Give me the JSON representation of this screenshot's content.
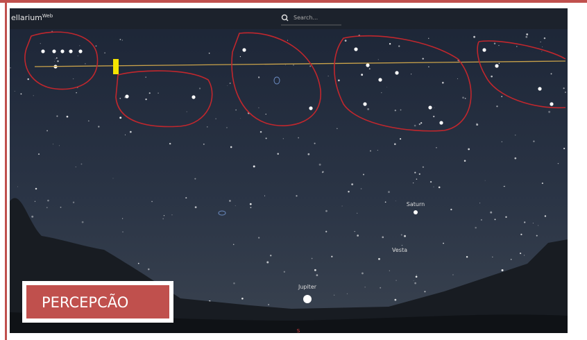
{
  "app": {
    "name": "ellarium",
    "name_sup": "Web",
    "search_placeholder": "Search..."
  },
  "sky_labels": [
    "Saturn",
    "Vesta",
    "Jupiter"
  ],
  "compass": "S",
  "badge": "PERCEPCÃO"
}
